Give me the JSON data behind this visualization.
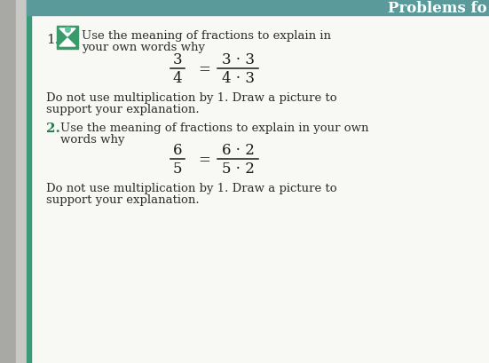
{
  "bg_color": "#e8e8e4",
  "page_bg": "#ffffff",
  "left_bar_color": "#3a9a7a",
  "header_bg": "#5a9a9a",
  "header_text": "Problems fo",
  "header_text_color": "#ffffff",
  "number1_color": "#2d2d2d",
  "number2_color": "#2d7a50",
  "item1_number": "1.",
  "item2_number": "2.",
  "item1_line1": "Use the meaning of fractions to explain in",
  "item1_line2": "your own words why",
  "item1_eq_num": "3",
  "item1_eq_den": "4",
  "item1_eq_rnum": "3 · 3",
  "item1_eq_rden": "4 · 3",
  "item1_body1": "Do not use multiplication by 1. Draw a picture to",
  "item1_body2": "support your explanation.",
  "item2_line1": "Use the meaning of fractions to explain in your own",
  "item2_line2": "words why",
  "item2_eq_num": "6",
  "item2_eq_den": "5",
  "item2_eq_rnum": "6 · 2",
  "item2_eq_rden": "5 · 2",
  "item2_body1": "Do not use multiplication by 1. Draw a picture to",
  "item2_body2": "support your explanation.",
  "font_size_body": 9.5,
  "font_size_eq": 12,
  "font_size_number": 10,
  "font_size_header": 12
}
